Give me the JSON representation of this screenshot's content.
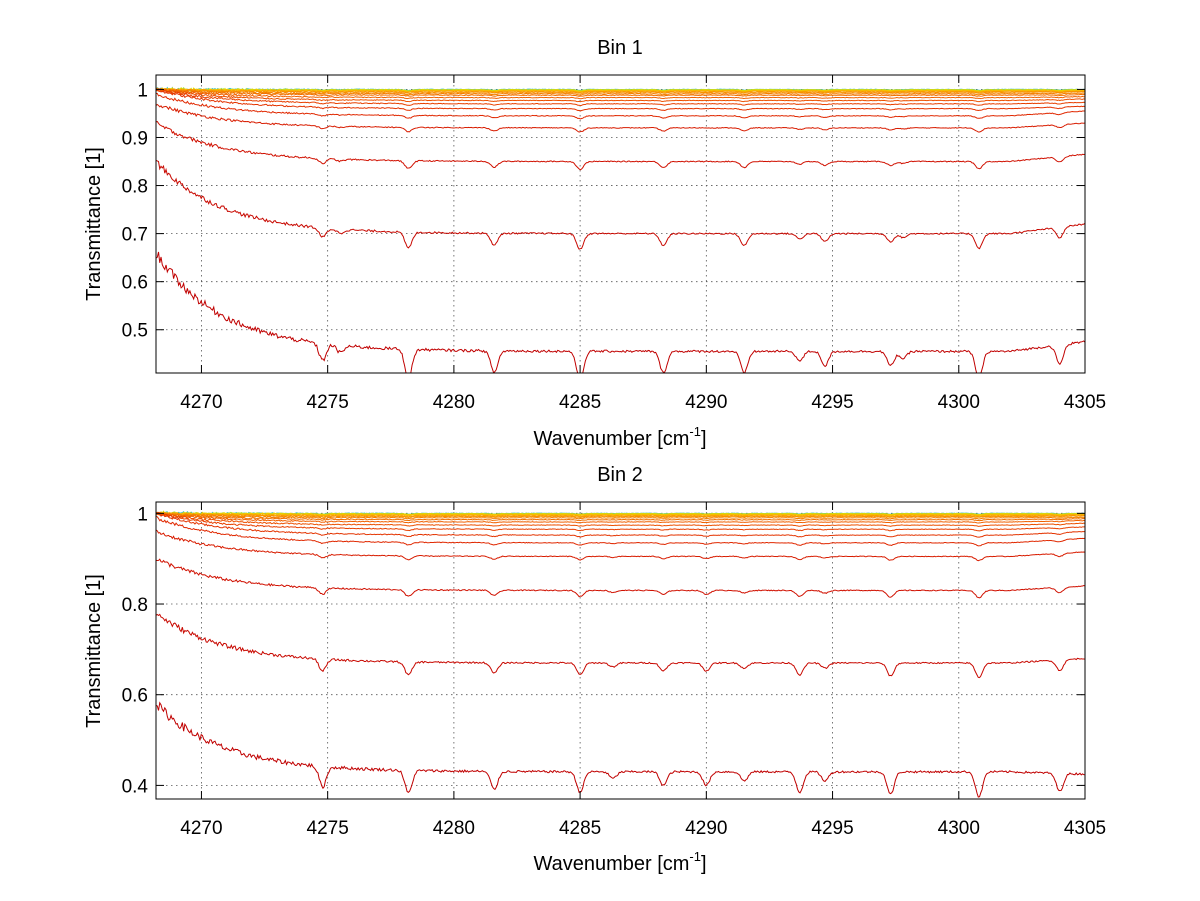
{
  "chart_data": [
    {
      "type": "line",
      "title": "Bin 1",
      "xlabel": "Wavenumber [cm",
      "xlabel_sup": "-1",
      "xlabel_end": "]",
      "ylabel": "Transmittance [1]",
      "xlim": [
        4268.2,
        4305
      ],
      "ylim": [
        0.41,
        1.03
      ],
      "xticks": [
        4270,
        4275,
        4280,
        4285,
        4290,
        4295,
        4300,
        4305
      ],
      "yticks": [
        0.5,
        0.6,
        0.7,
        0.8,
        0.9,
        1
      ],
      "ytick_labels": [
        "0.5",
        "0.6",
        "0.7",
        "0.8",
        "0.9",
        "1"
      ],
      "grid": true,
      "series_baselines": [
        0.455,
        0.7,
        0.85,
        0.92,
        0.945,
        0.96,
        0.97,
        0.977,
        0.983,
        0.988,
        0.991,
        0.994,
        0.996,
        0.997,
        0.998,
        0.999,
        0.9995,
        1.0
      ],
      "series_start_values": [
        0.66,
        0.85,
        0.93,
        0.97,
        0.99,
        1.0,
        1.0,
        1.0,
        1.0,
        1.0,
        1.0,
        1.0,
        1.0,
        1.0,
        1.0,
        1.0,
        1.0,
        1.0
      ],
      "series_end_values": [
        0.475,
        0.72,
        0.865,
        0.93,
        0.955,
        0.965,
        0.973,
        0.98,
        0.985,
        0.989,
        0.992,
        0.995,
        0.996,
        0.997,
        0.998,
        0.999,
        0.9995,
        1.0
      ],
      "absorption_lines": [
        {
          "x": 4274.8,
          "depth": 0.035
        },
        {
          "x": 4275.5,
          "depth": 0.015
        },
        {
          "x": 4278.2,
          "depth": 0.06
        },
        {
          "x": 4281.6,
          "depth": 0.045
        },
        {
          "x": 4285.0,
          "depth": 0.06
        },
        {
          "x": 4288.3,
          "depth": 0.045
        },
        {
          "x": 4291.5,
          "depth": 0.045
        },
        {
          "x": 4293.7,
          "depth": 0.02
        },
        {
          "x": 4294.7,
          "depth": 0.03
        },
        {
          "x": 4297.3,
          "depth": 0.03
        },
        {
          "x": 4297.8,
          "depth": 0.015
        },
        {
          "x": 4300.8,
          "depth": 0.055
        },
        {
          "x": 4304.0,
          "depth": 0.04
        }
      ],
      "series_colors": [
        "#c00000",
        "#c80800",
        "#d01000",
        "#d81c00",
        "#e02800",
        "#e43400",
        "#e84000",
        "#ec5000",
        "#f06000",
        "#f07000",
        "#f48000",
        "#f89000",
        "#f8a000",
        "#f8b800",
        "#f0c800",
        "#e0d800",
        "#a8e040",
        "#40c0c0"
      ]
    },
    {
      "type": "line",
      "title": "Bin 2",
      "xlabel": "Wavenumber [cm",
      "xlabel_sup": "-1",
      "xlabel_end": "]",
      "ylabel": "Transmittance [1]",
      "xlim": [
        4268.2,
        4305
      ],
      "ylim": [
        0.37,
        1.025
      ],
      "xticks": [
        4270,
        4275,
        4280,
        4285,
        4290,
        4295,
        4300,
        4305
      ],
      "yticks": [
        0.4,
        0.6,
        0.8,
        1
      ],
      "ytick_labels": [
        "0.4",
        "0.6",
        "0.8",
        "1"
      ],
      "grid": true,
      "series_baselines": [
        0.43,
        0.67,
        0.83,
        0.905,
        0.935,
        0.952,
        0.965,
        0.974,
        0.981,
        0.986,
        0.99,
        0.993,
        0.995,
        0.997,
        0.998,
        0.999,
        0.9995,
        1.0
      ],
      "series_start_values": [
        0.58,
        0.78,
        0.9,
        0.96,
        0.99,
        1.0,
        1.0,
        1.0,
        1.0,
        1.0,
        1.0,
        1.0,
        1.0,
        1.0,
        1.0,
        1.0,
        1.0,
        1.0
      ],
      "series_end_values": [
        0.425,
        0.68,
        0.84,
        0.915,
        0.945,
        0.96,
        0.97,
        0.978,
        0.984,
        0.988,
        0.991,
        0.994,
        0.996,
        0.997,
        0.998,
        0.999,
        0.9995,
        1.0
      ],
      "absorption_lines": [
        {
          "x": 4274.8,
          "depth": 0.045
        },
        {
          "x": 4278.2,
          "depth": 0.05
        },
        {
          "x": 4281.6,
          "depth": 0.04
        },
        {
          "x": 4285.0,
          "depth": 0.045
        },
        {
          "x": 4286.3,
          "depth": 0.015
        },
        {
          "x": 4288.3,
          "depth": 0.03
        },
        {
          "x": 4290.0,
          "depth": 0.03
        },
        {
          "x": 4291.5,
          "depth": 0.02
        },
        {
          "x": 4293.7,
          "depth": 0.045
        },
        {
          "x": 4294.7,
          "depth": 0.02
        },
        {
          "x": 4297.3,
          "depth": 0.05
        },
        {
          "x": 4300.8,
          "depth": 0.055
        },
        {
          "x": 4304.0,
          "depth": 0.04
        }
      ],
      "series_colors": [
        "#c00000",
        "#c80800",
        "#d01000",
        "#d81c00",
        "#e02800",
        "#e43400",
        "#e84000",
        "#ec5000",
        "#f06000",
        "#f07000",
        "#f48000",
        "#f89000",
        "#f8a000",
        "#f8b800",
        "#f0c800",
        "#e0d800",
        "#a8e040",
        "#40c0c0"
      ]
    }
  ]
}
